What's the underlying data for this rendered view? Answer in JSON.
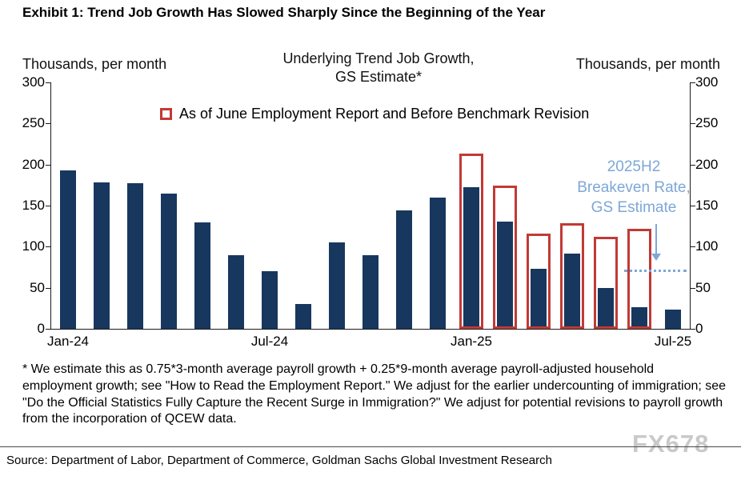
{
  "exhibit_title": "Exhibit 1: Trend Job Growth Has Slowed Sharply Since the Beginning of the Year",
  "chart_data": {
    "type": "bar",
    "title": "Underlying Trend Job Growth,\nGS Estimate*",
    "left_axis_title": "Thousands, per month",
    "right_axis_title": "Thousands, per month",
    "legend": [
      {
        "label": "As of June Employment Report and Before Benchmark Revision",
        "marker": "red-outline-square"
      }
    ],
    "legend_position": "top",
    "grid": false,
    "ylim": [
      0,
      300
    ],
    "yticks": [
      0,
      50,
      100,
      150,
      200,
      250,
      300
    ],
    "categories": [
      "Jan-24",
      "Feb-24",
      "Mar-24",
      "Apr-24",
      "May-24",
      "Jun-24",
      "Jul-24",
      "Aug-24",
      "Sep-24",
      "Oct-24",
      "Nov-24",
      "Dec-24",
      "Jan-25",
      "Feb-25",
      "Mar-25",
      "Apr-25",
      "May-25",
      "Jun-25",
      "Jul-25"
    ],
    "x_tick_labels": [
      "Jan-24",
      "Jul-24",
      "Jan-25",
      "Jul-25"
    ],
    "x_tick_indexes": [
      0,
      6,
      12,
      18
    ],
    "series": [
      {
        "name": "Underlying trend job growth (current estimate)",
        "color": "#17375e",
        "style": "solid",
        "values": [
          193,
          178,
          177,
          165,
          130,
          90,
          70,
          30,
          105,
          90,
          144,
          160,
          172,
          131,
          73,
          92,
          50,
          26,
          23
        ]
      },
      {
        "name": "As of June Employment Report and Before Benchmark Revision",
        "color": "#c13a35",
        "style": "outline",
        "values": [
          null,
          null,
          null,
          null,
          null,
          null,
          null,
          null,
          null,
          null,
          null,
          null,
          213,
          174,
          116,
          129,
          112,
          122,
          null
        ]
      }
    ],
    "annotation": {
      "text": "2025H2\nBreakeven Rate,\nGS Estimate",
      "color": "#7da7d8"
    },
    "breakeven_line": {
      "value": 70,
      "color": "#7da7d8",
      "style": "dotted"
    }
  },
  "footnote": "* We estimate this as 0.75*3-month average payroll growth + 0.25*9-month average payroll-adjusted household employment growth; see \"How to Read the Employment Report.\" We adjust for the earlier undercounting of immigration; see \"Do the Official Statistics Fully Capture the Recent Surge in Immigration?\" We adjust for potential revisions to payroll growth from the incorporation of QCEW data.",
  "source": "Source: Department of Labor, Department of Commerce, Goldman Sachs Global Investment Research",
  "watermark": "FX678"
}
